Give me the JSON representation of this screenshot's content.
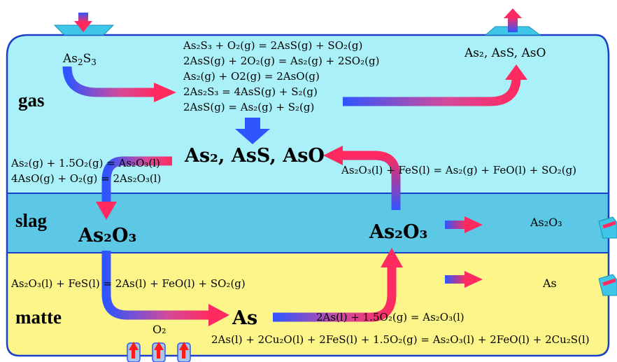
{
  "zones": {
    "gas": "gas",
    "slag": "slag",
    "matte": "matte"
  },
  "gas_inlet": {
    "species": "As",
    "sub": "2",
    "tail": "S",
    "sub2": "3"
  },
  "gas_outlet": "As₂, AsS, AsO",
  "gas_reactions": [
    "As₂S₃ + O₂(g) = 2AsS(g) + SO₂(g)",
    "2AsS(g) + 2O₂(g) = As₂(g) + 2SO₂(g)",
    "As₂(g) + O2(g) = 2AsO(g)",
    "2As₂S₃ = 4AsS(g) + S₂(g)",
    "2AsS(g) = As₂(g) + S₂(g)"
  ],
  "gas_center_species": "As₂, AsS, AsO",
  "left_reactions": [
    "As₂(g) + 1.5O₂(g) = As₂O₃(l)",
    "4AsO(g) + O₂(g) = 2As₂O₃(l)"
  ],
  "right_reaction": "As₂O₃(l) + FeS(l) = As₂(g) + FeO(l) + SO₂(g)",
  "slag_left": "As₂O₃",
  "slag_right": "As₂O₃",
  "slag_outlet": "As₂O₃",
  "matte_reaction_left": "As₂O₃(l) + FeS(l) = 2As(l) + FeO(l) + SO₂(g)",
  "matte_as": "As",
  "matte_outlet": "As",
  "matte_reaction_1": "2As(l) + 1.5O₂(g) = As₂O₃(l)",
  "matte_reaction_2": "2As(l) + 2Cu₂O(l) + 2FeS(l) + 1.5O₂(g) = As₂O₃(l) + 2FeO(l) + 2Cu₂S(l)",
  "oxygen_label": "O₂",
  "colors": {
    "gas": "#aaf0f8",
    "slag": "#5cc8e6",
    "matte": "#fbf58a",
    "border": "#1a3fc8",
    "arrow_blue": "#2f55ff",
    "arrow_red": "#ff1a4a"
  }
}
